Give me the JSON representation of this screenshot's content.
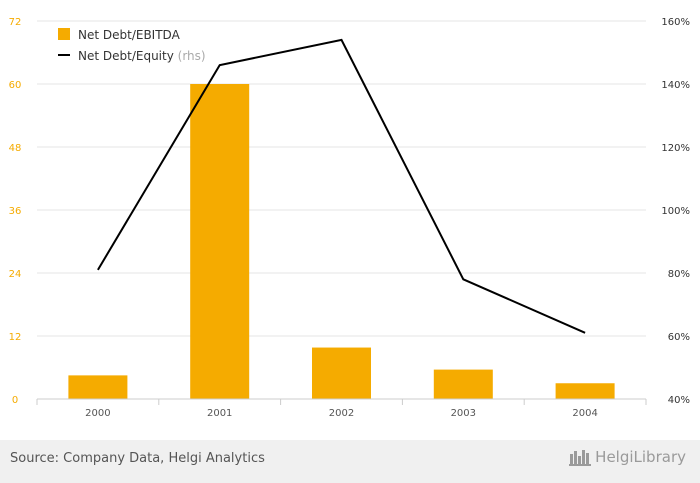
{
  "chart_data": {
    "type": "bar",
    "categories": [
      "2000",
      "2001",
      "2002",
      "2003",
      "2004"
    ],
    "series": [
      {
        "name": "Net Debt/EBITDA",
        "type": "bar",
        "axis": "left",
        "values": [
          4.5,
          60,
          9.8,
          5.6,
          3.0
        ],
        "color": "#f5ab00"
      },
      {
        "name": "Net Debt/Equity",
        "suffix": "(rhs)",
        "type": "line",
        "axis": "right",
        "values": [
          81,
          146,
          154,
          78,
          61
        ],
        "color": "#000000"
      }
    ],
    "y_left": {
      "min": 0,
      "max": 72,
      "ticks": [
        "0",
        "12",
        "24",
        "36",
        "48",
        "60",
        "72"
      ],
      "color": "#f5ab00"
    },
    "y_right": {
      "min": 40,
      "max": 160,
      "ticks": [
        "40%",
        "60%",
        "80%",
        "100%",
        "120%",
        "140%",
        "160%"
      ]
    },
    "grid": true,
    "legend_position": "top-left"
  },
  "footer": {
    "source": "Source: Company Data, Helgi Analytics",
    "brand": "HelgiLibrary"
  }
}
